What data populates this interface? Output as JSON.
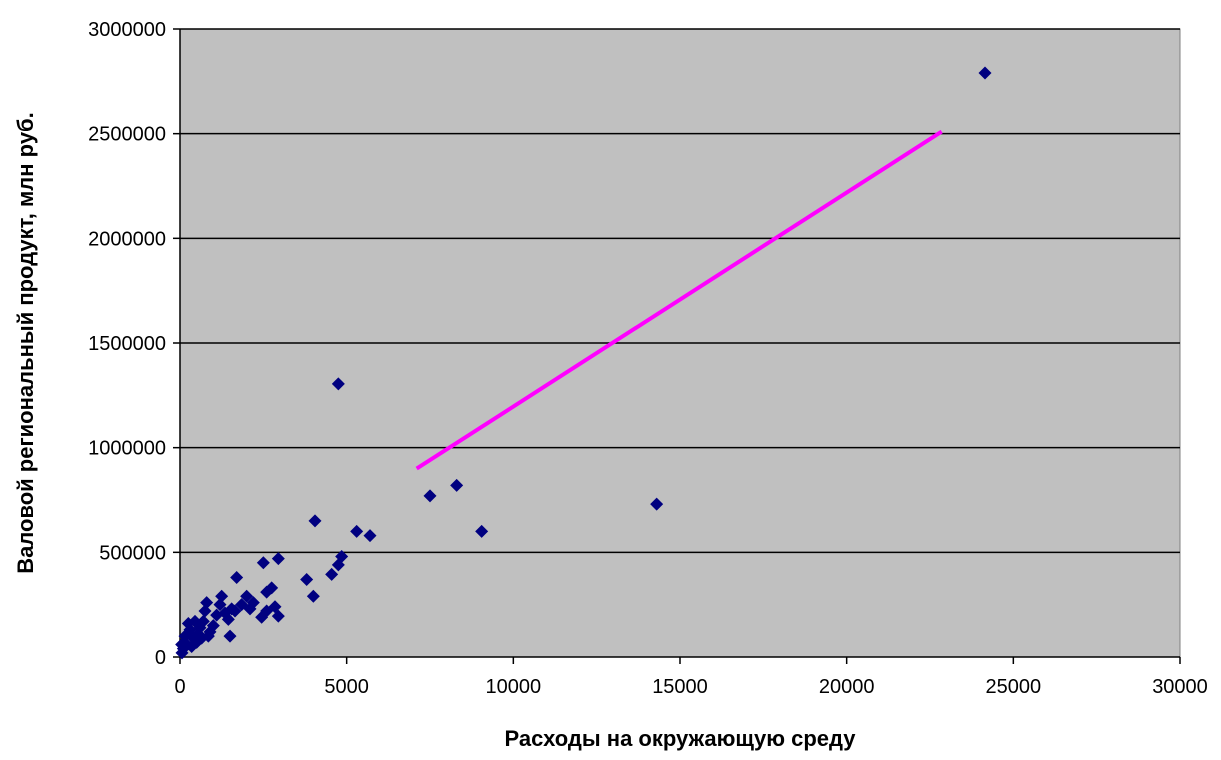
{
  "chart_data": {
    "type": "scatter",
    "xlabel": "Расходы на окружающую среду",
    "ylabel": "Валовой региональный продукт, млн руб.",
    "xlim": [
      0,
      30000
    ],
    "ylim": [
      0,
      3000000
    ],
    "x_ticks": [
      0,
      5000,
      10000,
      15000,
      20000,
      25000,
      30000
    ],
    "y_ticks": [
      0,
      500000,
      1000000,
      1500000,
      2000000,
      2500000,
      3000000
    ],
    "x_tick_labels": [
      "0",
      "5000",
      "10000",
      "15000",
      "20000",
      "25000",
      "30000"
    ],
    "y_tick_labels": [
      "0",
      "500000",
      "1000000",
      "1500000",
      "2000000",
      "2500000",
      "3000000"
    ],
    "grid": "horizontal",
    "colors": {
      "plot_background": "#c0c0c0",
      "points": "#000080",
      "trend_line": "#ff00ff",
      "grid": "#000000"
    },
    "series": [
      {
        "type": "scatter",
        "points": [
          [
            24150,
            2790000
          ],
          [
            4750,
            1305000
          ],
          [
            14300,
            730000
          ],
          [
            8300,
            820000
          ],
          [
            7500,
            770000
          ],
          [
            9050,
            600000
          ],
          [
            4050,
            650000
          ],
          [
            5300,
            600000
          ],
          [
            5700,
            580000
          ],
          [
            4850,
            480000
          ],
          [
            4750,
            440000
          ],
          [
            4550,
            395000
          ],
          [
            3800,
            370000
          ],
          [
            4000,
            290000
          ],
          [
            2950,
            470000
          ],
          [
            2500,
            450000
          ],
          [
            2750,
            330000
          ],
          [
            2600,
            310000
          ],
          [
            2850,
            240000
          ],
          [
            2450,
            190000
          ],
          [
            2950,
            195000
          ],
          [
            2600,
            220000
          ],
          [
            1700,
            380000
          ],
          [
            2000,
            290000
          ],
          [
            1850,
            250000
          ],
          [
            1550,
            230000
          ],
          [
            1250,
            290000
          ],
          [
            1450,
            180000
          ],
          [
            1500,
            100000
          ],
          [
            1200,
            250000
          ],
          [
            1000,
            150000
          ],
          [
            800,
            260000
          ],
          [
            750,
            220000
          ],
          [
            700,
            170000
          ],
          [
            600,
            140000
          ],
          [
            550,
            110000
          ],
          [
            450,
            170000
          ],
          [
            400,
            90000
          ],
          [
            300,
            130000
          ],
          [
            250,
            160000
          ],
          [
            200,
            60000
          ],
          [
            150,
            100000
          ],
          [
            100,
            40000
          ],
          [
            60,
            20000
          ],
          [
            350,
            50000
          ],
          [
            500,
            70000
          ],
          [
            650,
            90000
          ],
          [
            900,
            120000
          ],
          [
            1100,
            200000
          ],
          [
            1350,
            210000
          ],
          [
            2100,
            230000
          ],
          [
            2200,
            260000
          ],
          [
            1650,
            220000
          ],
          [
            850,
            100000
          ],
          [
            50,
            60000
          ]
        ]
      },
      {
        "type": "line",
        "points": [
          [
            7100,
            900000
          ],
          [
            22850,
            2510000
          ]
        ]
      }
    ]
  }
}
